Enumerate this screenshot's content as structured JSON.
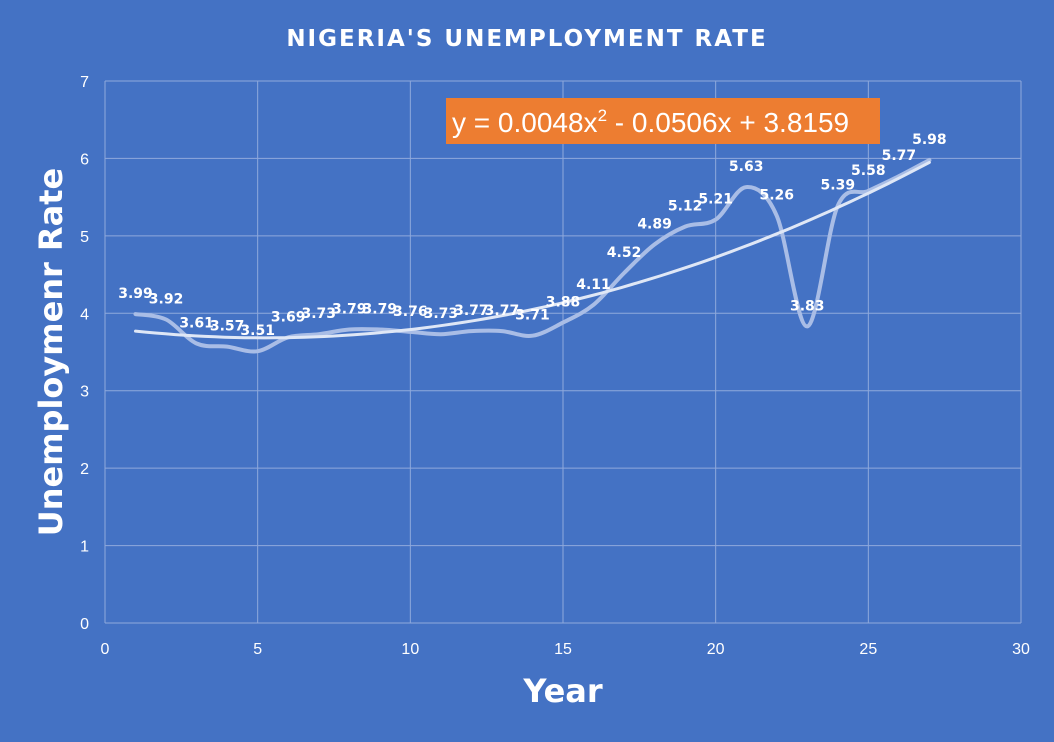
{
  "chart_data": {
    "type": "line",
    "title": "NIGERIA'S UNEMPLOYMENT RATE",
    "xlabel": "Year",
    "ylabel": "Unemploymenr Rate",
    "xlim": [
      0,
      30
    ],
    "ylim": [
      0,
      7
    ],
    "xticks": [
      0,
      5,
      10,
      15,
      20,
      25,
      30
    ],
    "yticks": [
      0,
      1,
      2,
      3,
      4,
      5,
      6,
      7
    ],
    "grid": true,
    "legend": "none",
    "series": [
      {
        "x": [
          1,
          2,
          3,
          4,
          5,
          6,
          7,
          8,
          9,
          10,
          11,
          12,
          13,
          14,
          15,
          16,
          17,
          18,
          19,
          20,
          21,
          22,
          23,
          24,
          25,
          26,
          27
        ],
        "values": [
          3.99,
          3.92,
          3.61,
          3.57,
          3.51,
          3.69,
          3.73,
          3.79,
          3.79,
          3.76,
          3.73,
          3.77,
          3.77,
          3.71,
          3.88,
          4.11,
          4.52,
          4.89,
          5.12,
          5.21,
          5.63,
          5.26,
          3.83,
          5.39,
          5.58,
          5.77,
          5.98
        ],
        "labels": [
          "3.99",
          "3.92",
          "3.61",
          "3.57",
          "3.51",
          "3.69",
          "3.73",
          "3.79",
          "3.79",
          "3.76",
          "3.73",
          "3.77",
          "3.77",
          "3.71",
          "3.88",
          "4.11",
          "4.52",
          "4.89",
          "5.12",
          "5.21",
          "5.63",
          "5.26",
          "3.83",
          "5.39",
          "5.58",
          "5.77",
          "5.98"
        ],
        "color": "#a9bde6"
      }
    ],
    "trendline": {
      "type": "polynomial",
      "order": 2,
      "coefficients": [
        0.0048,
        -0.0506,
        3.8159
      ],
      "equation_prefix": "y = 0.0048x",
      "equation_exponent": "2",
      "equation_suffix": " - 0.0506x + 3.8159",
      "color": "#dfe7f6",
      "box_color": "#ed7d31"
    },
    "background_color": "#4472c4",
    "gridline_color": "#8fa9dc"
  }
}
